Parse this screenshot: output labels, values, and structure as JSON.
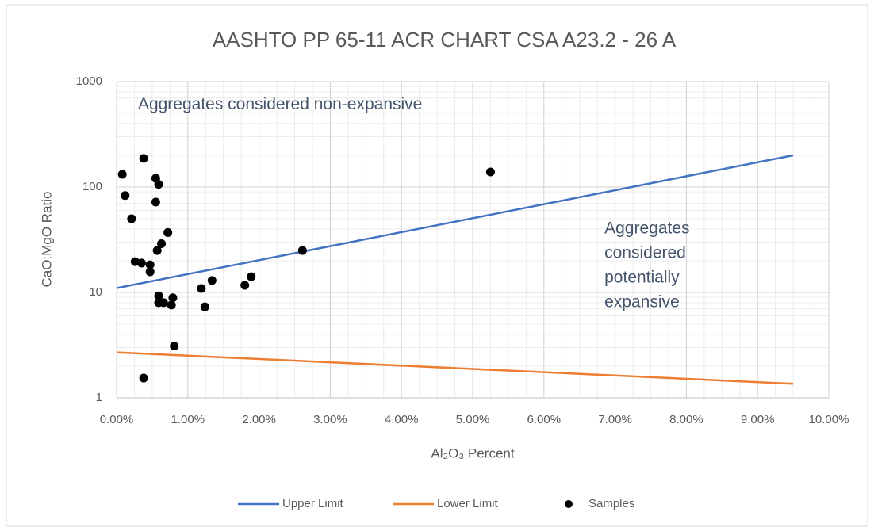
{
  "chart_data": {
    "type": "scatter",
    "title": "AASHTO PP 65-11 ACR CHART CSA A23.2 - 26 A",
    "x_label": "Al₂O₃ Percent",
    "y_label": "CaO:MgO Ratio",
    "xlim": [
      0,
      10
    ],
    "xticks": [
      {
        "value": 0,
        "label": "0.00%"
      },
      {
        "value": 1,
        "label": "1.00%"
      },
      {
        "value": 2,
        "label": "2.00%"
      },
      {
        "value": 3,
        "label": "3.00%"
      },
      {
        "value": 4,
        "label": "4.00%"
      },
      {
        "value": 5,
        "label": "5.00%"
      },
      {
        "value": 6,
        "label": "6.00%"
      },
      {
        "value": 7,
        "label": "7.00%"
      },
      {
        "value": 8,
        "label": "8.00%"
      },
      {
        "value": 9,
        "label": "9.00%"
      },
      {
        "value": 10,
        "label": "10.00%"
      }
    ],
    "ylim": [
      1,
      1000
    ],
    "yticks": [
      1,
      10,
      100,
      1000
    ],
    "y_log": true,
    "grid": true,
    "minor_grid": true,
    "legend": "bottom",
    "series": [
      {
        "name": "Upper Limit",
        "kind": "line",
        "color": "#4472c4",
        "x": [
          0,
          9.5
        ],
        "values": [
          11,
          200
        ]
      },
      {
        "name": "Lower Limit",
        "kind": "line",
        "color": "#ed7d31",
        "x": [
          0,
          9.5
        ],
        "values": [
          2.7,
          1.36
        ]
      },
      {
        "name": "Samples",
        "kind": "points",
        "color": "#000000",
        "x": [
          0.08,
          0.12,
          0.21,
          0.38,
          0.26,
          0.35,
          0.47,
          0.47,
          0.55,
          0.59,
          0.55,
          0.57,
          0.63,
          0.72,
          0.59,
          0.59,
          0.66,
          0.77,
          0.79,
          0.81,
          0.38,
          1.19,
          1.24,
          1.34,
          1.8,
          1.89,
          2.61,
          5.25
        ],
        "values": [
          132,
          83,
          50,
          187,
          19.6,
          19,
          18.3,
          15.7,
          121,
          106,
          72,
          25,
          29,
          37,
          9.3,
          8,
          8,
          7.6,
          8.9,
          3.1,
          1.54,
          10.9,
          7.3,
          13,
          11.7,
          14.1,
          25,
          139
        ]
      }
    ],
    "annotations": [
      {
        "lines": [
          "Aggregates considered non-expansive"
        ],
        "x": 0.3,
        "y": 600
      },
      {
        "lines": [
          "Aggregates",
          "considered",
          "potentially",
          "expansive"
        ],
        "x": 6.85,
        "y": 40
      }
    ]
  }
}
